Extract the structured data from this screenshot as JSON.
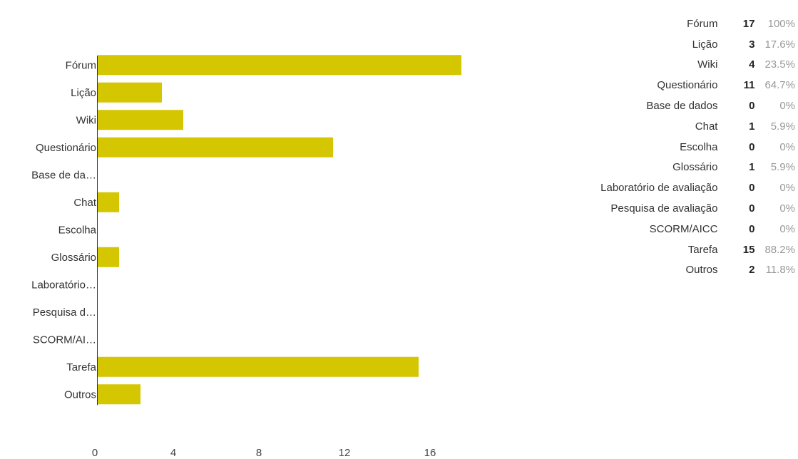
{
  "chart_data": {
    "type": "bar",
    "orientation": "horizontal",
    "categories": [
      "Fórum",
      "Lição",
      "Wiki",
      "Questionário",
      "Base de dados",
      "Chat",
      "Escolha",
      "Glossário",
      "Laboratório de avaliação",
      "Pesquisa de avaliação",
      "SCORM/AICC",
      "Tarefa",
      "Outros"
    ],
    "axis_labels": [
      "Fórum",
      "Lição",
      "Wiki",
      "Questionário",
      "Base de da…",
      "Chat",
      "Escolha",
      "Glossário",
      "Laboratório…",
      "Pesquisa d…",
      "SCORM/AI…",
      "Tarefa",
      "Outros"
    ],
    "values": [
      17,
      3,
      4,
      11,
      0,
      1,
      0,
      1,
      0,
      0,
      0,
      15,
      2
    ],
    "xticks": [
      0,
      4,
      8,
      12,
      16
    ],
    "xlim": [
      0,
      17
    ],
    "grid": false,
    "colors": {
      "bar": "#d4c600",
      "axis": "#333333",
      "tick_text": "#444444"
    }
  },
  "table": {
    "rows": [
      {
        "label": "Fórum",
        "count": "17",
        "percent": "100%"
      },
      {
        "label": "Lição",
        "count": "3",
        "percent": "17.6%"
      },
      {
        "label": "Wiki",
        "count": "4",
        "percent": "23.5%"
      },
      {
        "label": "Questionário",
        "count": "11",
        "percent": "64.7%"
      },
      {
        "label": "Base de dados",
        "count": "0",
        "percent": "0%"
      },
      {
        "label": "Chat",
        "count": "1",
        "percent": "5.9%"
      },
      {
        "label": "Escolha",
        "count": "0",
        "percent": "0%"
      },
      {
        "label": "Glossário",
        "count": "1",
        "percent": "5.9%"
      },
      {
        "label": "Laboratório de avaliação",
        "count": "0",
        "percent": "0%"
      },
      {
        "label": "Pesquisa de avaliação",
        "count": "0",
        "percent": "0%"
      },
      {
        "label": "SCORM/AICC",
        "count": "0",
        "percent": "0%"
      },
      {
        "label": "Tarefa",
        "count": "15",
        "percent": "88.2%"
      },
      {
        "label": "Outros",
        "count": "2",
        "percent": "11.8%"
      }
    ]
  }
}
